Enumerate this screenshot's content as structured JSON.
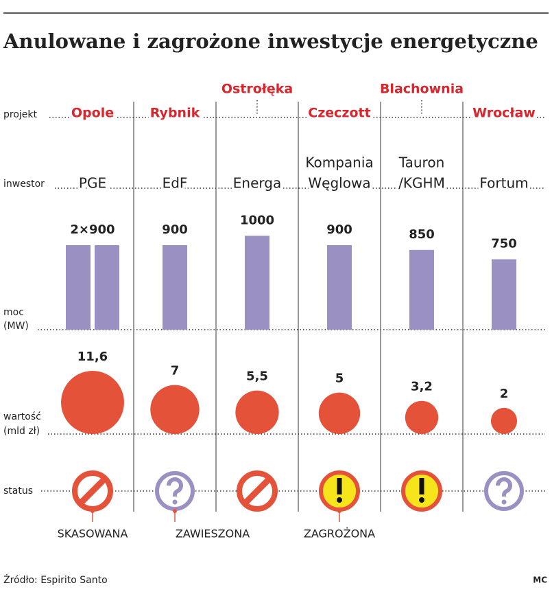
{
  "title": "Anulowane i zagrożone inwestycje energetyczne",
  "row_labels": {
    "project": "projekt",
    "investor": "inwestor",
    "power": [
      "moc",
      "(MW)"
    ],
    "value": [
      "wartość",
      "(mld zł)"
    ],
    "status": "status"
  },
  "legend": [
    "SKASOWANA",
    "ZAWIESZONA",
    "ZAGROŻONA"
  ],
  "columns": [
    {
      "project": "Opole",
      "investor": [
        "PGE"
      ],
      "power": [
        900,
        900
      ],
      "power_label": "2×900",
      "value": 11.6,
      "value_label": "11,6",
      "status": 0
    },
    {
      "project": "Rybnik",
      "investor": [
        "EdF"
      ],
      "power": [
        900
      ],
      "value": 7,
      "status": 1
    },
    {
      "project": "Ostrołęka",
      "investor": [
        "Energa"
      ],
      "power": [
        1000
      ],
      "value": 5.5,
      "value_label": "5,5",
      "status": 0
    },
    {
      "project": "Czeczott",
      "investor": [
        "Kompania",
        "Węglowa"
      ],
      "power": [
        900
      ],
      "value": 5,
      "status": 2
    },
    {
      "project": "Blachownia",
      "investor": [
        "Tauron",
        "/KGHM"
      ],
      "power": [
        850
      ],
      "value": 3.2,
      "value_label": "3,2",
      "status": 2
    },
    {
      "project": "Wrocław",
      "investor": [
        "Fortum"
      ],
      "power": [
        750
      ],
      "value": 2,
      "status": 1
    }
  ],
  "source": "Źródło: Espirito Santo",
  "credit": "MC"
}
